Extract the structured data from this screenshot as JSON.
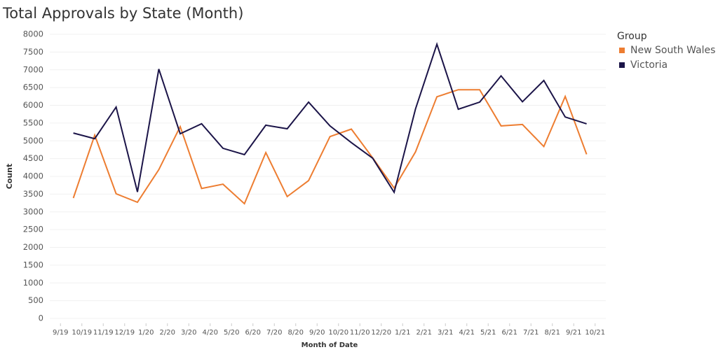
{
  "chart_data": {
    "type": "line",
    "title": "Total Approvals by State (Month)",
    "x_label": "Month of Date",
    "y_label": "Count",
    "legend_title": "Group",
    "legend": "top-right",
    "grid": true,
    "categories": [
      "9/19",
      "10/19",
      "11/19",
      "12/19",
      "1/20",
      "2/20",
      "3/20",
      "4/20",
      "5/20",
      "6/20",
      "7/20",
      "8/20",
      "9/20",
      "10/20",
      "11/20",
      "12/20",
      "1/21",
      "2/21",
      "3/21",
      "4/21",
      "5/21",
      "6/21",
      "7/21",
      "8/21",
      "9/21",
      "10/21"
    ],
    "ylim": [
      0,
      8000
    ],
    "yticks": [
      0,
      500,
      1000,
      1500,
      2000,
      2500,
      3000,
      3500,
      4000,
      4500,
      5000,
      5500,
      6000,
      6500,
      7000,
      7500,
      8000
    ],
    "series": [
      {
        "name": "New South Wales",
        "color": "#ed7d31",
        "values": [
          3390,
          5160,
          3510,
          3270,
          4190,
          5400,
          3660,
          3780,
          3230,
          4670,
          3430,
          3880,
          5120,
          5330,
          4520,
          3670,
          4690,
          6240,
          6440,
          6440,
          5420,
          5460,
          4840,
          6250,
          4620,
          null
        ]
      },
      {
        "name": "Victoria",
        "color": "#1b1448",
        "values": [
          5220,
          5060,
          5950,
          3560,
          7020,
          5200,
          5480,
          4790,
          4610,
          5440,
          5340,
          6090,
          5420,
          4950,
          4510,
          3550,
          5900,
          7720,
          5890,
          6090,
          6830,
          6100,
          6700,
          5670,
          5480,
          null
        ]
      }
    ]
  }
}
